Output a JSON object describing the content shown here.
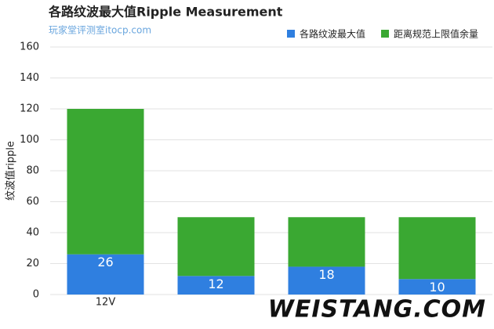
{
  "chart_data": {
    "type": "stacked_bar",
    "title": "各路纹波最大值Ripple Measurement",
    "subtitle": "玩家堂评测室itocp.com",
    "y_label": "纹波值ripple",
    "watermark": "WEISTANG.COM",
    "categories": [
      "12V",
      null,
      null,
      null
    ],
    "series": [
      {
        "name": "各路纹波最大值",
        "color": "#2f7fe0",
        "values": [
          26,
          12,
          18,
          10
        ]
      },
      {
        "name": "距离规范上限值余量",
        "color": "#3aa832",
        "values": [
          94,
          38,
          32,
          40
        ]
      }
    ],
    "ylim": [
      0,
      160
    ],
    "yticks": [
      0,
      20,
      40,
      60,
      80,
      100,
      120,
      140,
      160
    ],
    "grid": true,
    "legend": "top-right"
  }
}
